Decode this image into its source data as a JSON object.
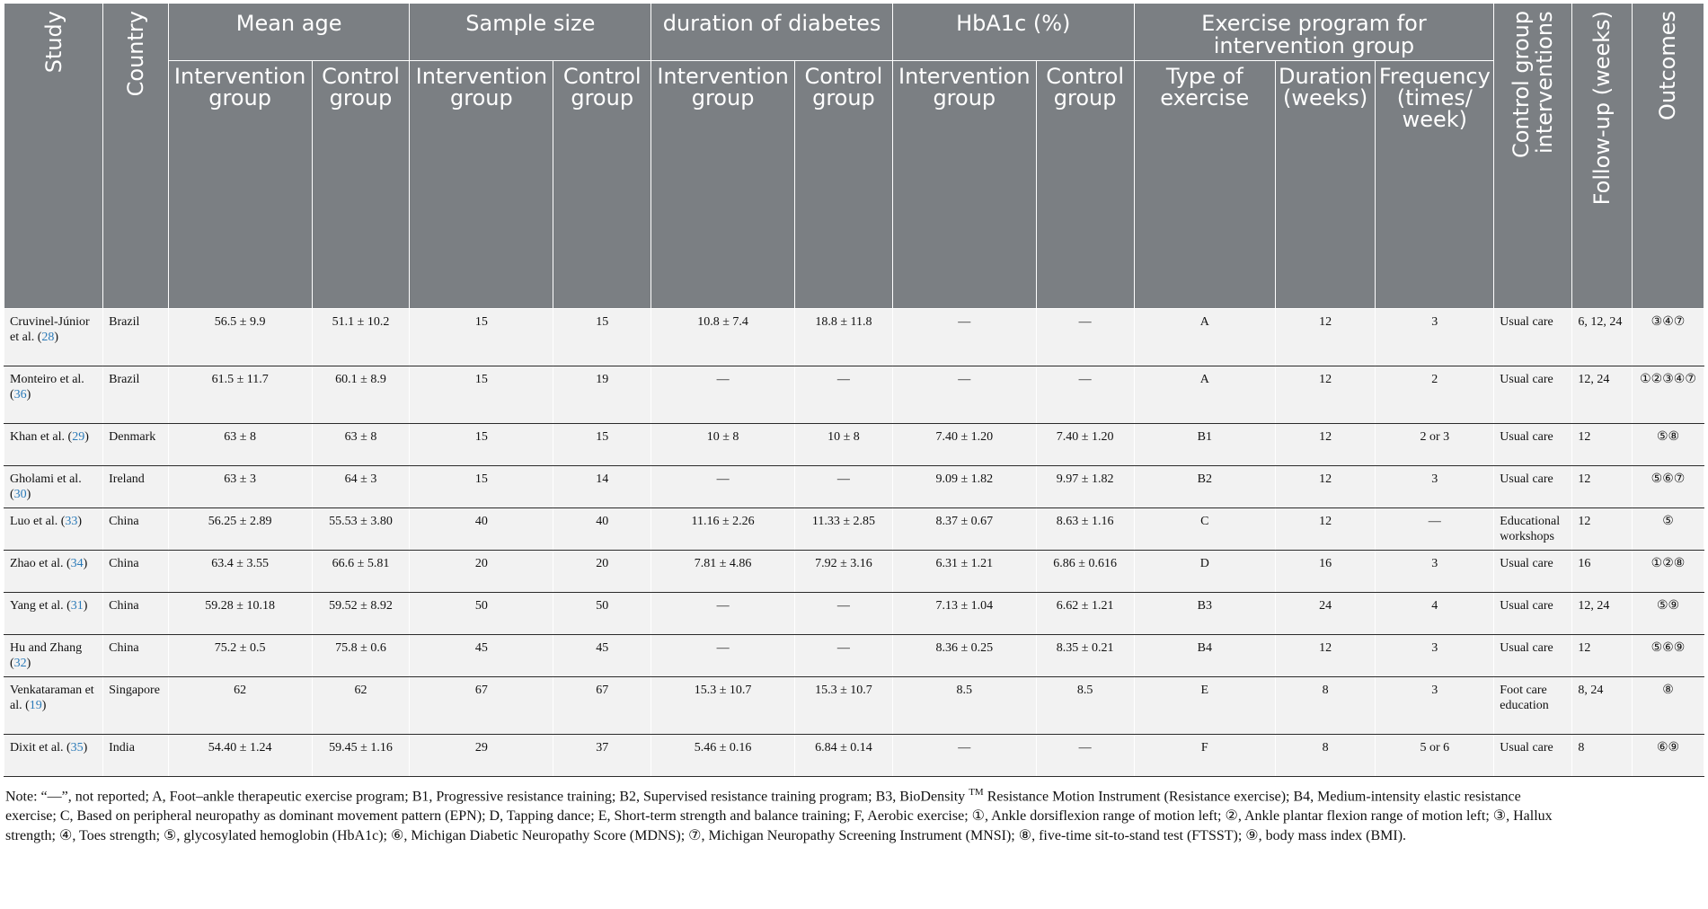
{
  "header": {
    "study": "Study",
    "country": "Country",
    "mean_age": "Mean age",
    "sample_size": "Sample size",
    "duration_diabetes": "duration of diabetes",
    "hba1c": "HbA1c (%)",
    "exercise_program": "Exercise program for intervention group",
    "control_interventions": "Control group interventions",
    "follow_up": "Follow-up (weeks)",
    "outcomes": "Outcomes",
    "intervention_group": "Intervention group",
    "control_group": "Control group",
    "type_of_exercise": "Type of exercise",
    "duration_weeks": "Duration (weeks)",
    "frequency": "Frequency (times/ week)"
  },
  "rows": [
    {
      "study": "Cruvinel-Júnior et al. (",
      "ref": "28",
      "study_end": ")",
      "country": "Brazil",
      "age_i": "56.5 ± 9.9",
      "age_c": "51.1 ± 10.2",
      "n_i": "15",
      "n_c": "15",
      "dur_i": "10.8 ± 7.4",
      "dur_c": "18.8 ± 11.8",
      "hba_i": "—",
      "hba_c": "—",
      "type": "A",
      "duration": "12",
      "freq": "3",
      "control": "Usual care",
      "follow": "6, 12, 24",
      "outcomes": "③④⑦"
    },
    {
      "study": "Monteiro et al. (",
      "ref": "36",
      "study_end": ")",
      "country": "Brazil",
      "age_i": "61.5 ± 11.7",
      "age_c": "60.1 ± 8.9",
      "n_i": "15",
      "n_c": "19",
      "dur_i": "—",
      "dur_c": "—",
      "hba_i": "—",
      "hba_c": "—",
      "type": "A",
      "duration": "12",
      "freq": "2",
      "control": "Usual care",
      "follow": "12, 24",
      "outcomes": "①②③④⑦"
    },
    {
      "study": "Khan et al. (",
      "ref": "29",
      "study_end": ")",
      "country": "Denmark",
      "age_i": "63 ± 8",
      "age_c": "63 ± 8",
      "n_i": "15",
      "n_c": "15",
      "dur_i": "10 ± 8",
      "dur_c": "10 ± 8",
      "hba_i": "7.40 ± 1.20",
      "hba_c": "7.40 ± 1.20",
      "type": "B1",
      "duration": "12",
      "freq": "2 or 3",
      "control": "Usual care",
      "follow": "12",
      "outcomes": "⑤⑧"
    },
    {
      "study": "Gholami et al. (",
      "ref": "30",
      "study_end": ")",
      "country": "Ireland",
      "age_i": "63 ± 3",
      "age_c": "64 ± 3",
      "n_i": "15",
      "n_c": "14",
      "dur_i": "—",
      "dur_c": "—",
      "hba_i": "9.09 ± 1.82",
      "hba_c": "9.97 ± 1.82",
      "type": "B2",
      "duration": "12",
      "freq": "3",
      "control": "Usual care",
      "follow": "12",
      "outcomes": "⑤⑥⑦"
    },
    {
      "study": "Luo et al. (",
      "ref": "33",
      "study_end": ")",
      "country": "China",
      "age_i": "56.25 ± 2.89",
      "age_c": "55.53 ± 3.80",
      "n_i": "40",
      "n_c": "40",
      "dur_i": "11.16 ± 2.26",
      "dur_c": "11.33 ± 2.85",
      "hba_i": "8.37 ± 0.67",
      "hba_c": "8.63 ± 1.16",
      "type": "C",
      "duration": "12",
      "freq": "—",
      "control": "Educational workshops",
      "follow": "12",
      "outcomes": "⑤"
    },
    {
      "study": "Zhao et al. (",
      "ref": "34",
      "study_end": ")",
      "country": "China",
      "age_i": "63.4 ± 3.55",
      "age_c": "66.6 ± 5.81",
      "n_i": "20",
      "n_c": "20",
      "dur_i": "7.81 ± 4.86",
      "dur_c": "7.92 ± 3.16",
      "hba_i": "6.31 ± 1.21",
      "hba_c": "6.86 ± 0.616",
      "type": "D",
      "duration": "16",
      "freq": "3",
      "control": "Usual care",
      "follow": "16",
      "outcomes": "①②⑧"
    },
    {
      "study": "Yang et al. (",
      "ref": "31",
      "study_end": ")",
      "country": "China",
      "age_i": "59.28 ± 10.18",
      "age_c": "59.52 ± 8.92",
      "n_i": "50",
      "n_c": "50",
      "dur_i": "—",
      "dur_c": "—",
      "hba_i": "7.13 ± 1.04",
      "hba_c": "6.62 ± 1.21",
      "type": "B3",
      "duration": "24",
      "freq": "4",
      "control": "Usual care",
      "follow": "12, 24",
      "outcomes": "⑤⑨"
    },
    {
      "study": "Hu and Zhang (",
      "ref": "32",
      "study_end": ")",
      "country": "China",
      "age_i": "75.2 ± 0.5",
      "age_c": "75.8 ± 0.6",
      "n_i": "45",
      "n_c": "45",
      "dur_i": "—",
      "dur_c": "—",
      "hba_i": "8.36 ± 0.25",
      "hba_c": "8.35 ± 0.21",
      "type": "B4",
      "duration": "12",
      "freq": "3",
      "control": "Usual care",
      "follow": "12",
      "outcomes": "⑤⑥⑨"
    },
    {
      "study": "Venkataraman et al. (",
      "ref": "19",
      "study_end": ")",
      "country": "Singapore",
      "age_i": "62",
      "age_c": "62",
      "n_i": "67",
      "n_c": "67",
      "dur_i": "15.3 ± 10.7",
      "dur_c": "15.3 ± 10.7",
      "hba_i": "8.5",
      "hba_c": "8.5",
      "type": "E",
      "duration": "8",
      "freq": "3",
      "control": "Foot care education",
      "follow": "8, 24",
      "outcomes": "⑧"
    },
    {
      "study": "Dixit et al. (",
      "ref": "35",
      "study_end": ")",
      "country": "India",
      "age_i": "54.40 ± 1.24",
      "age_c": "59.45 ± 1.16",
      "n_i": "29",
      "n_c": "37",
      "dur_i": "5.46 ± 0.16",
      "dur_c": "6.84 ± 0.14",
      "hba_i": "—",
      "hba_c": "—",
      "type": "F",
      "duration": "8",
      "freq": "5 or 6",
      "control": "Usual care",
      "follow": "8",
      "outcomes": "⑥⑨"
    }
  ],
  "note": {
    "line1_a": "Note: “—”, not reported; A, Foot–ankle therapeutic exercise program; B1, Progressive resistance training; B2, Supervised resistance training program; B3, BioDensity",
    "line1_sup": "TM",
    "line1_b": " Resistance Motion Instrument (Resistance exercise); B4, Medium-intensity elastic resistance",
    "line2": "exercise; C, Based on peripheral neuropathy as dominant movement pattern (EPN); D, Tapping dance; E, Short-term strength and balance training; F, Aerobic exercise; ①, Ankle dorsiflexion range of motion left; ②, Ankle plantar flexion range of motion left; ③, Hallux",
    "line3": "strength; ④, Toes strength; ⑤, glycosylated hemoglobin (HbA1c); ⑥, Michigan Diabetic Neuropathy Score (MDNS); ⑦, Michigan Neuropathy Screening Instrument (MNSI); ⑧, five-time sit-to-stand test (FTSST); ⑨, body mass index (BMI)."
  }
}
